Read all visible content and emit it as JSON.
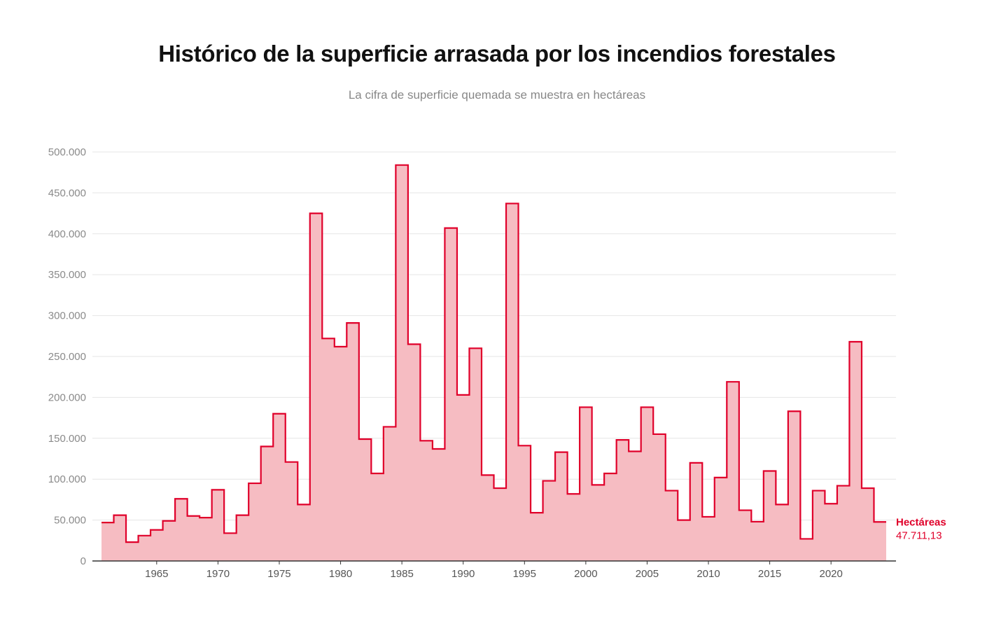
{
  "title": "Histórico de la superficie arrasada por los incendios forestales",
  "subtitle": "La cifra de superficie quemada se muestra en hectáreas",
  "colors": {
    "line": "#e0002a",
    "fill": "#f6bcc2",
    "grid": "#e6e6e6",
    "axis": "#333333"
  },
  "chart_data": {
    "type": "area",
    "interpolation": "step",
    "title": "Histórico de la superficie arrasada por los incendios forestales",
    "subtitle": "La cifra de superficie quemada se muestra en hectáreas",
    "xlabel": "",
    "ylabel": "",
    "xlim": [
      1961,
      2024
    ],
    "ylim": [
      0,
      500000
    ],
    "yticks": [
      0,
      50000,
      100000,
      150000,
      200000,
      250000,
      300000,
      350000,
      400000,
      450000,
      500000
    ],
    "ytick_labels": [
      "0",
      "50.000",
      "100.000",
      "150.000",
      "200.000",
      "250.000",
      "300.000",
      "350.000",
      "400.000",
      "450.000",
      "500.000"
    ],
    "xticks": [
      1965,
      1970,
      1975,
      1980,
      1985,
      1990,
      1995,
      2000,
      2005,
      2010,
      2015,
      2020
    ],
    "xtick_labels": [
      "1965",
      "1970",
      "1975",
      "1980",
      "1985",
      "1990",
      "1995",
      "2000",
      "2005",
      "2010",
      "2015",
      "2020"
    ],
    "grid": true,
    "series": [
      {
        "name": "Hectáreas",
        "end_label": "Hectáreas",
        "end_value_label": "47.711,13",
        "x": [
          1961,
          1962,
          1963,
          1964,
          1965,
          1966,
          1967,
          1968,
          1969,
          1970,
          1971,
          1972,
          1973,
          1974,
          1975,
          1976,
          1977,
          1978,
          1979,
          1980,
          1981,
          1982,
          1983,
          1984,
          1985,
          1986,
          1987,
          1988,
          1989,
          1990,
          1991,
          1992,
          1993,
          1994,
          1995,
          1996,
          1997,
          1998,
          1999,
          2000,
          2001,
          2002,
          2003,
          2004,
          2005,
          2006,
          2007,
          2008,
          2009,
          2010,
          2011,
          2012,
          2013,
          2014,
          2015,
          2016,
          2017,
          2018,
          2019,
          2020,
          2021,
          2022,
          2023,
          2024
        ],
        "values": [
          47000,
          56000,
          23000,
          31000,
          38000,
          49000,
          76000,
          55000,
          53000,
          87000,
          34000,
          56000,
          95000,
          140000,
          180000,
          121000,
          69000,
          425000,
          272000,
          262000,
          291000,
          149000,
          107000,
          164000,
          484000,
          265000,
          147000,
          137000,
          407000,
          203000,
          260000,
          105000,
          89000,
          437000,
          141000,
          59000,
          98000,
          133000,
          82000,
          188000,
          93000,
          107000,
          148000,
          134000,
          188000,
          155000,
          86000,
          50000,
          120000,
          54000,
          102000,
          219000,
          62000,
          48000,
          110000,
          69000,
          183000,
          27000,
          86000,
          70000,
          92000,
          268000,
          89000,
          47711.13
        ]
      }
    ]
  }
}
